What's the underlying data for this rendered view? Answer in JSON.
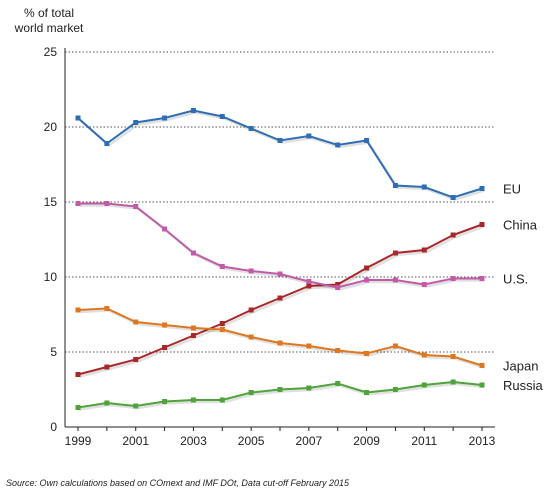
{
  "chart_data": {
    "type": "line",
    "ylabel_line1": "% of total",
    "ylabel_line2": "world market",
    "x": [
      1999,
      2000,
      2001,
      2002,
      2003,
      2004,
      2005,
      2006,
      2007,
      2008,
      2009,
      2010,
      2011,
      2012,
      2013
    ],
    "x_tick_labels": [
      "1999",
      "2001",
      "2003",
      "2005",
      "2007",
      "2009",
      "2011",
      "2013"
    ],
    "y_tick_labels": [
      "0",
      "5",
      "10",
      "15",
      "20",
      "25"
    ],
    "ylim": [
      0,
      25
    ],
    "grid": "horizontal dotted",
    "legend": "labels at right end of lines",
    "series": [
      {
        "name": "EU",
        "color": "#2f6db5",
        "values": [
          20.6,
          18.9,
          20.3,
          20.6,
          21.1,
          20.7,
          19.9,
          19.1,
          19.4,
          18.8,
          19.1,
          16.1,
          16.0,
          15.3,
          15.9
        ]
      },
      {
        "name": "China",
        "color": "#a8272a",
        "values": [
          3.5,
          4.0,
          4.5,
          5.3,
          6.1,
          6.9,
          7.8,
          8.6,
          9.4,
          9.5,
          10.6,
          11.6,
          11.8,
          12.8,
          13.5
        ]
      },
      {
        "name": "U.S.",
        "color": "#c35aa8",
        "values": [
          14.9,
          14.9,
          14.7,
          13.2,
          11.6,
          10.7,
          10.4,
          10.2,
          9.7,
          9.3,
          9.8,
          9.8,
          9.5,
          9.9,
          9.9
        ]
      },
      {
        "name": "Japan",
        "color": "#e0761f",
        "values": [
          7.8,
          7.9,
          7.0,
          6.8,
          6.6,
          6.5,
          6.0,
          5.6,
          5.4,
          5.1,
          4.9,
          5.4,
          4.8,
          4.7,
          4.1
        ]
      },
      {
        "name": "Russia",
        "color": "#4ea33a",
        "values": [
          1.3,
          1.6,
          1.4,
          1.7,
          1.8,
          1.8,
          2.3,
          2.5,
          2.6,
          2.9,
          2.3,
          2.5,
          2.8,
          3.0,
          2.8
        ]
      }
    ]
  },
  "source": "Source: Own calculations based on COmext and IMF DOt,  Data cut-off February 2015"
}
